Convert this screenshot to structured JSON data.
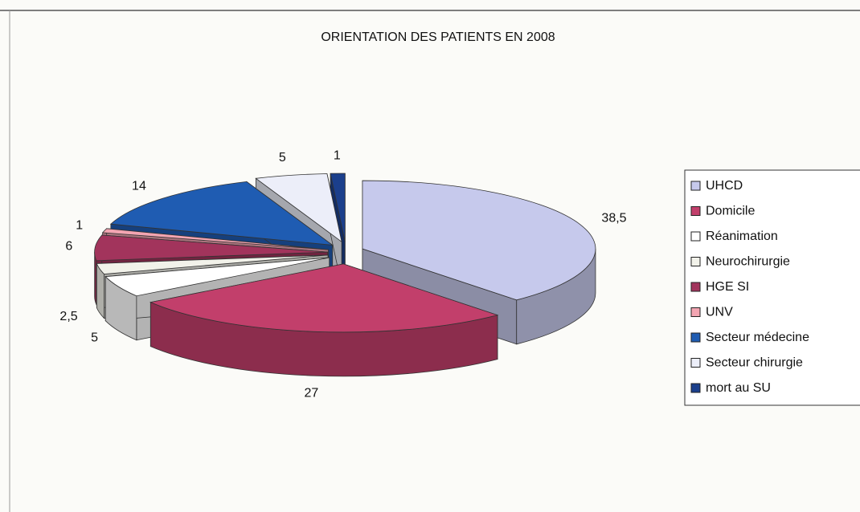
{
  "chart_data": {
    "type": "pie",
    "title": "ORIENTATION DES PATIENTS EN 2008",
    "categories": [
      "UHCD",
      "Domicile",
      "Réanimation",
      "Neurochirurgie",
      "HGE SI",
      "UNV",
      "Secteur médecine",
      "Secteur chirurgie",
      "mort au SU"
    ],
    "values": [
      38.5,
      27,
      5,
      2.5,
      6,
      1,
      14,
      5,
      1
    ],
    "value_labels": [
      "38,5",
      "27",
      "5",
      "2,5",
      "6",
      "1",
      "14",
      "5",
      "1"
    ],
    "colors": [
      "#c6c9ec",
      "#c23f6b",
      "#ffffff",
      "#f2f2ea",
      "#a2345c",
      "#f3a5b2",
      "#1f5cb2",
      "#eceef9",
      "#1b3f8c"
    ],
    "legend": "right"
  }
}
